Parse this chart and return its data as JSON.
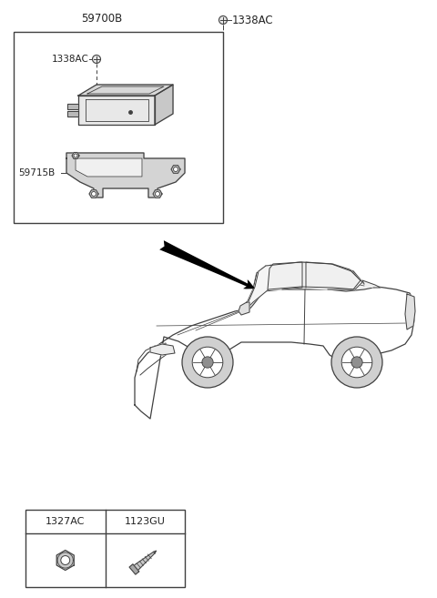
{
  "bg_color": "#ffffff",
  "line_color": "#404040",
  "label_color": "#222222",
  "parts": {
    "assembly_box_label": "59700B",
    "screw_outside_label": "1338AC",
    "screw_inside_label": "1338AC",
    "bracket_label": "59715B",
    "nut_label": "1327AC",
    "bolt_label": "1123GU"
  },
  "figsize": [
    4.8,
    6.57
  ],
  "dpi": 100
}
